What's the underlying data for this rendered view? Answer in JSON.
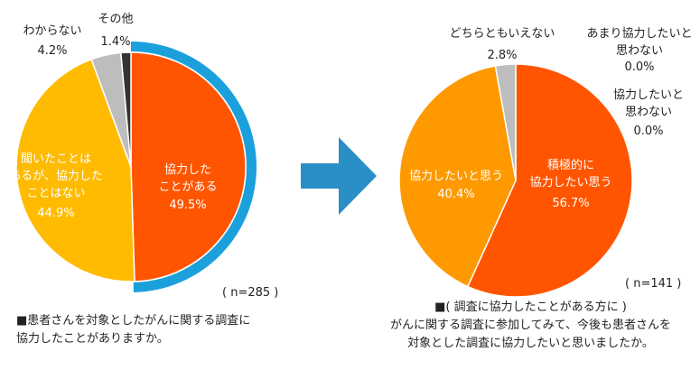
{
  "chart_data": [
    {
      "type": "pie",
      "sample": "( n=285 )",
      "question": [
        "■患者さんを対象としたがんに関する調査に",
        "協力したことがありますか。"
      ],
      "slices": [
        {
          "label": [
            "協力した",
            "ことがある"
          ],
          "value": 49.5,
          "value_text": "49.5%",
          "color": "#ff5500"
        },
        {
          "label": [
            "聞いたことは",
            "あるが、協力した",
            "ことはない"
          ],
          "value": 44.9,
          "value_text": "44.9%",
          "color": "#ffbb00"
        },
        {
          "label": [
            "わからない"
          ],
          "value": 4.2,
          "value_text": "4.2%",
          "color": "#bdbdbd"
        },
        {
          "label": [
            "その他"
          ],
          "value": 1.4,
          "value_text": "1.4%",
          "color": "#333333"
        }
      ],
      "highlight_color": "#1ba0dc"
    },
    {
      "type": "pie",
      "sample": "( n=141 )",
      "question": [
        "■( 調査に協力したことがある方に )",
        "がんに関する調査に参加してみて、今後も患者さんを",
        "対象とした調査に協力したいと思いましたか。"
      ],
      "slices": [
        {
          "label": [
            "積極的に",
            "協力したい思う"
          ],
          "value": 56.7,
          "value_text": "56.7%",
          "color": "#ff5500"
        },
        {
          "label": [
            "協力したいと思う"
          ],
          "value": 40.4,
          "value_text": "40.4%",
          "color": "#ff9900"
        },
        {
          "label": [
            "どちらともいえない"
          ],
          "value": 2.8,
          "value_text": "2.8%",
          "color": "#bdbdbd"
        },
        {
          "label": [
            "協力したいと",
            "思わない"
          ],
          "value": 0.0,
          "value_text": "0.0%",
          "color": "#666666"
        },
        {
          "label": [
            "あまり協力したいと",
            "思わない"
          ],
          "value": 0.0,
          "value_text": "0.0%",
          "color": "#999999"
        }
      ]
    }
  ],
  "arrow_color": "#2a8fc6"
}
